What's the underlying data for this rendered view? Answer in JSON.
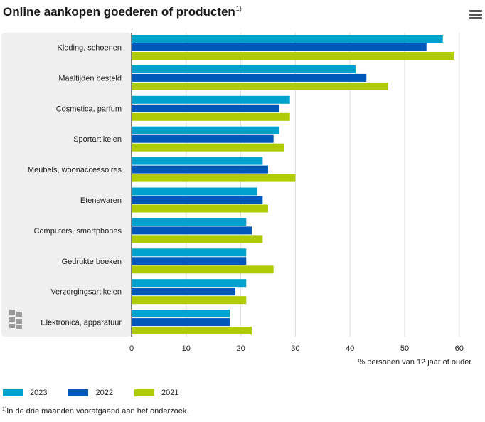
{
  "header": {
    "title": "Online aankopen goederen of producten",
    "title_note": "1)"
  },
  "menu": {
    "icon": "hamburger-menu-icon"
  },
  "logo": {
    "icon": "cbs-logo-icon"
  },
  "chart_data": {
    "type": "bar",
    "orientation": "horizontal",
    "categories": [
      "Kleding, schoenen",
      "Maaltijden besteld",
      "Cosmetica, parfum",
      "Sportartikelen",
      "Meubels, woonaccessoires",
      "Etenswaren",
      "Computers, smartphones",
      "Gedrukte boeken",
      "Verzorgingsartikelen",
      "Elektronica, apparatuur"
    ],
    "series": [
      {
        "name": "2023",
        "color": "#00a1cd",
        "values": [
          57,
          41,
          29,
          27,
          24,
          23,
          21,
          21,
          21,
          18
        ]
      },
      {
        "name": "2022",
        "color": "#0058b8",
        "values": [
          54,
          43,
          27,
          26,
          25,
          24,
          22,
          21,
          19,
          18
        ]
      },
      {
        "name": "2021",
        "color": "#afcb05",
        "values": [
          59,
          47,
          29,
          28,
          30,
          25,
          24,
          26,
          21,
          22
        ]
      }
    ],
    "xlabel": "% personen van 12 jaar of ouder",
    "xticks": [
      0,
      10,
      20,
      30,
      40,
      50,
      60
    ],
    "xlim": [
      0,
      63
    ],
    "grid": true,
    "legend_position": "bottom-left"
  },
  "footnote": {
    "marker": "1)",
    "text": "In de drie maanden voorafgaand aan het onderzoek."
  }
}
